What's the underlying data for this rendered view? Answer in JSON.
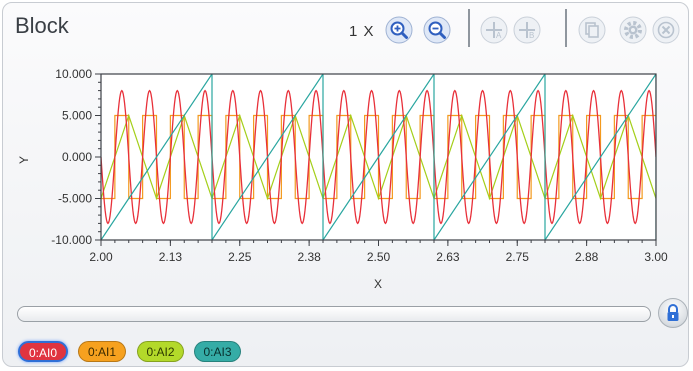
{
  "window": {
    "title": "Block",
    "zoom_label": "1 X"
  },
  "toolbar": {
    "buttons": [
      {
        "name": "zoom-in",
        "icon": "zoom-in-icon",
        "enabled": true
      },
      {
        "name": "zoom-out",
        "icon": "zoom-out-icon",
        "enabled": true
      },
      {
        "name": "cursor-a",
        "icon": "cursor-a-icon",
        "enabled": false
      },
      {
        "name": "cursor-b",
        "icon": "cursor-b-icon",
        "enabled": false
      },
      {
        "name": "copy",
        "icon": "copy-icon",
        "enabled": false
      },
      {
        "name": "settings",
        "icon": "gear-icon",
        "enabled": false
      },
      {
        "name": "close",
        "icon": "close-icon",
        "enabled": false
      }
    ]
  },
  "chart_data": {
    "type": "line",
    "xlabel": "X",
    "ylabel": "Y",
    "xlim": [
      2.0,
      3.0
    ],
    "ylim": [
      -10.0,
      10.0
    ],
    "x_ticks": [
      "2.00",
      "2.13",
      "2.25",
      "2.38",
      "2.50",
      "2.63",
      "2.75",
      "2.88",
      "3.00"
    ],
    "y_ticks": [
      "10.000",
      "5.000",
      "0.000",
      "-5.000",
      "-10.000"
    ],
    "series": [
      {
        "name": "0:AI0",
        "kind": "sine",
        "amplitude": 8,
        "cycles": 20,
        "color": "#e8303a"
      },
      {
        "name": "0:AI1",
        "kind": "square",
        "amplitude": 5,
        "cycles": 20,
        "color": "#f39a1e"
      },
      {
        "name": "0:AI2",
        "kind": "triangle",
        "amplitude": 5,
        "cycles": 10,
        "color": "#a4cf1a"
      },
      {
        "name": "0:AI3",
        "kind": "sawtooth",
        "min": -10,
        "max": 10,
        "cycles": 5,
        "color": "#2aa6a0"
      }
    ]
  },
  "legend": [
    {
      "label": "0:AI0",
      "bg": "#e03440",
      "fg": "#ffffff",
      "selected": true
    },
    {
      "label": "0:AI1",
      "bg": "#f6a11f",
      "fg": "#3a2a00",
      "selected": false
    },
    {
      "label": "0:AI2",
      "bg": "#b3d92a",
      "fg": "#2d3a00",
      "selected": false
    },
    {
      "label": "0:AI3",
      "bg": "#35aca6",
      "fg": "#08302d",
      "selected": false
    }
  ],
  "colors": {
    "accent": "#3a6fd8",
    "disabled_icon": "#c4ccd6",
    "grid_border": "#3d4046"
  }
}
